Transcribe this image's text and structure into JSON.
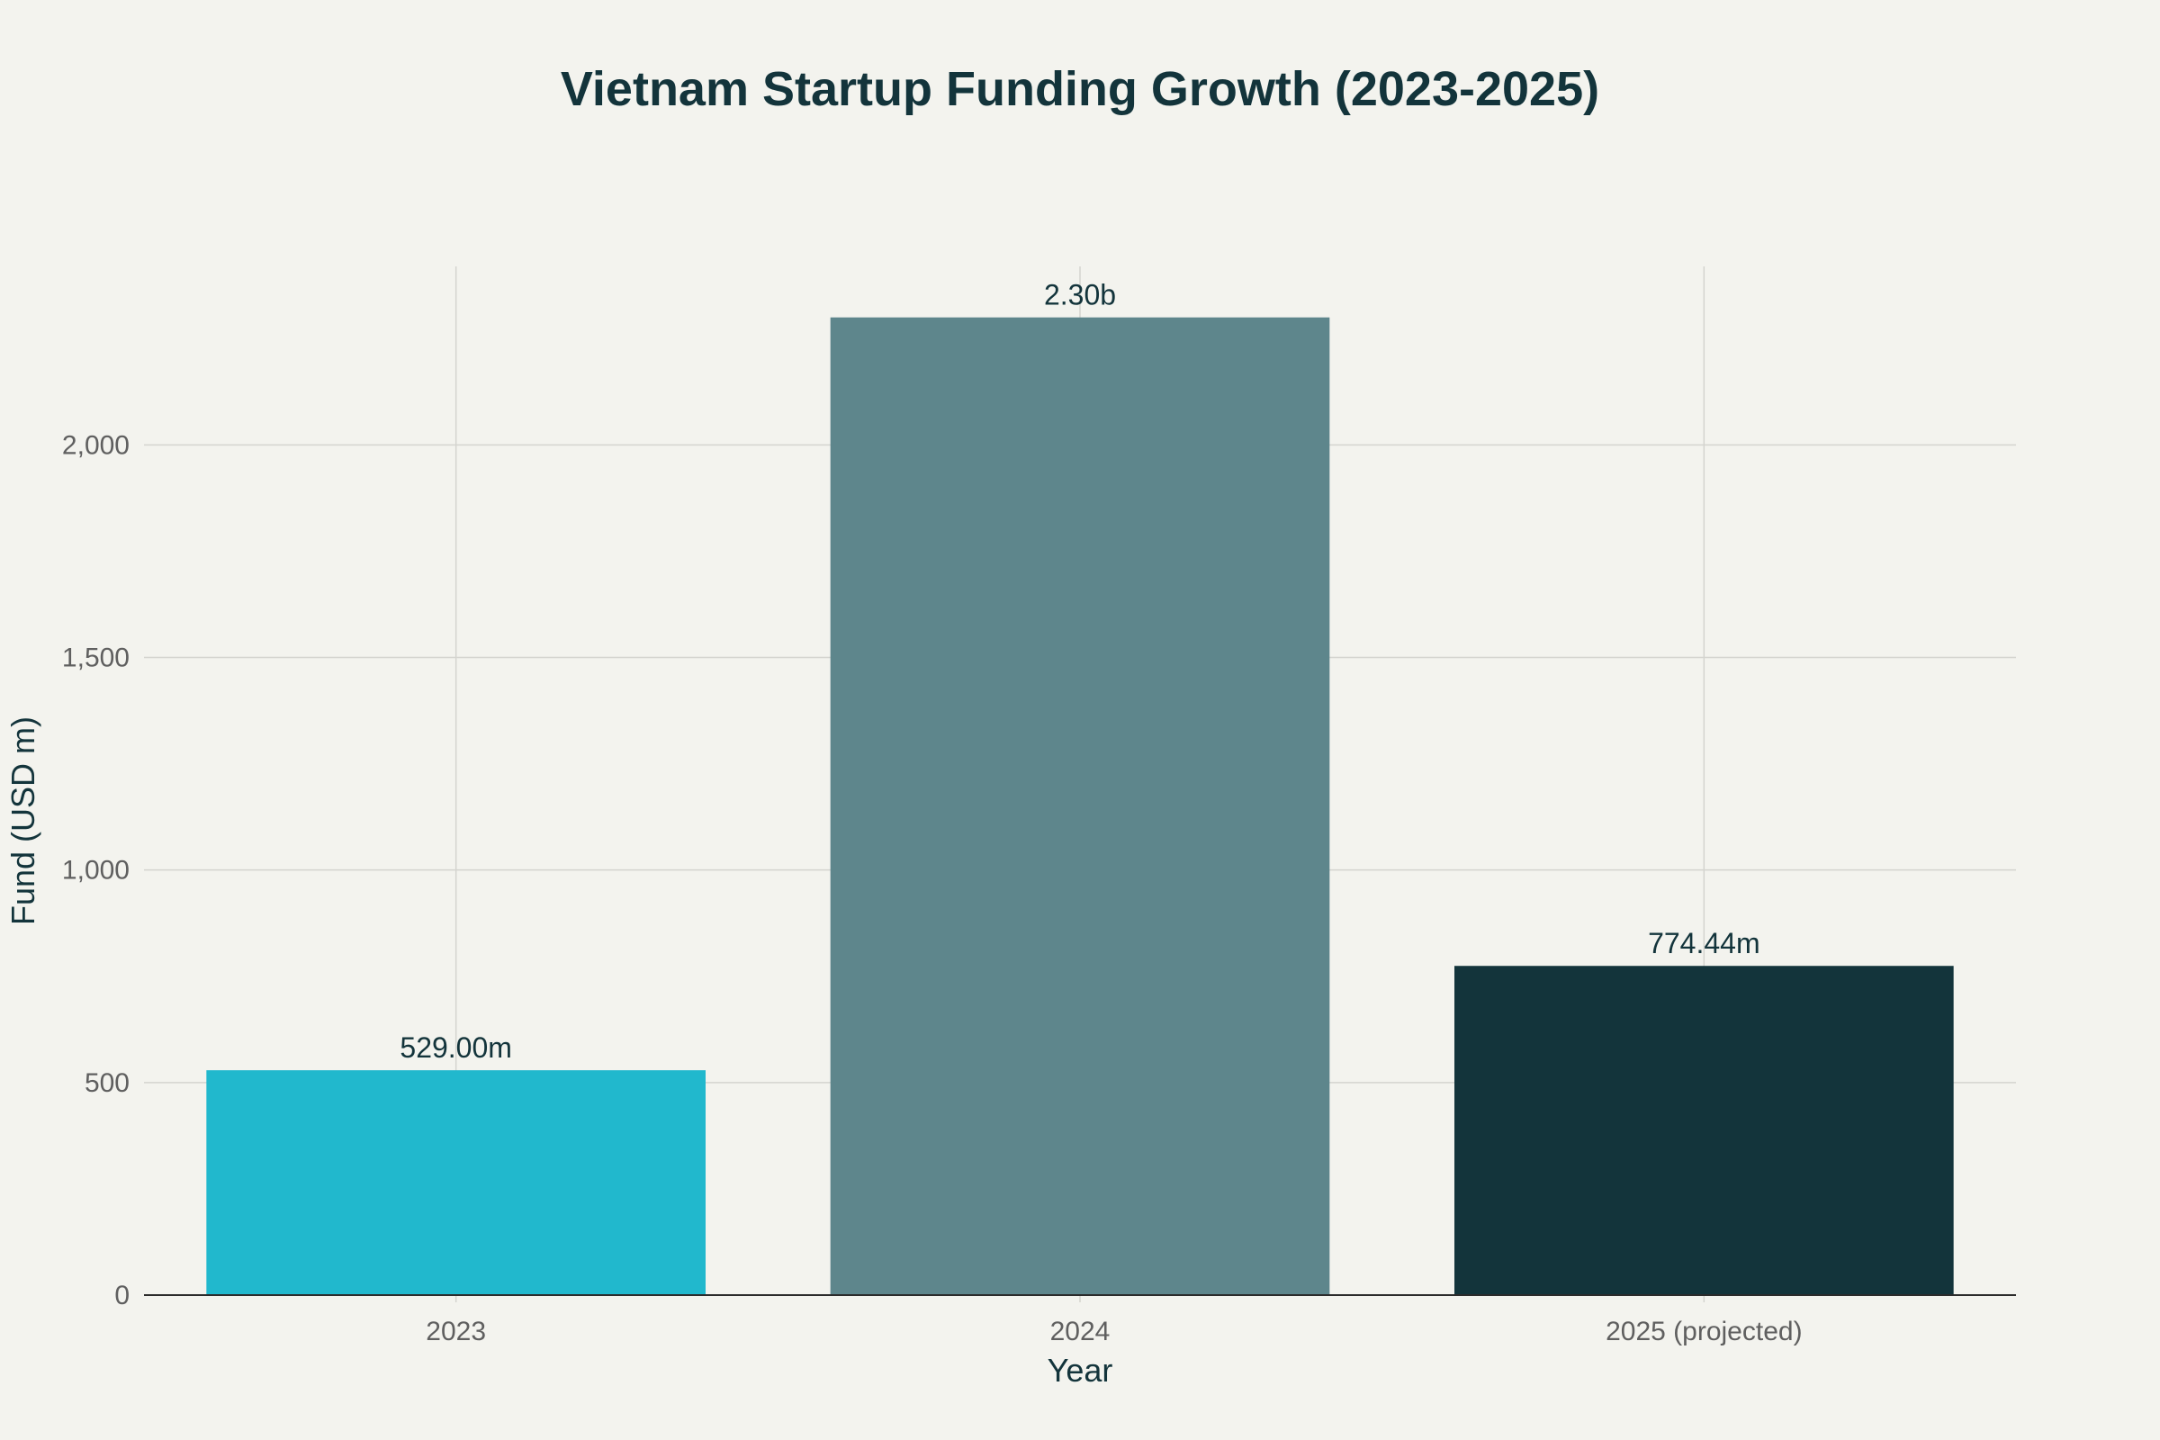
{
  "chart_data": {
    "type": "bar",
    "title": "Vietnam Startup Funding Growth (2023-2025)",
    "xlabel": "Year",
    "ylabel": "Fund (USD m)",
    "categories": [
      "2023",
      "2024",
      "2025 (projected)"
    ],
    "values": [
      529.0,
      2300.0,
      774.44
    ],
    "data_labels": [
      "529.00m",
      "2.30b",
      "774.44m"
    ],
    "bar_colors": [
      "#21b8cd",
      "#5e868c",
      "#13343b"
    ],
    "y_ticks": [
      0,
      500,
      1000,
      1500,
      2000
    ],
    "y_tick_labels": [
      "0",
      "500",
      "1,000",
      "1,500",
      "2,000"
    ],
    "ylim": [
      0,
      2420
    ],
    "grid": true,
    "legend": "none"
  },
  "colors": {
    "background": "#f3f3ee",
    "title": "#13343b",
    "gridline": "#d4d4cf",
    "axis_line": "#2b2b2b",
    "tick_text": "#5f5f5f"
  }
}
